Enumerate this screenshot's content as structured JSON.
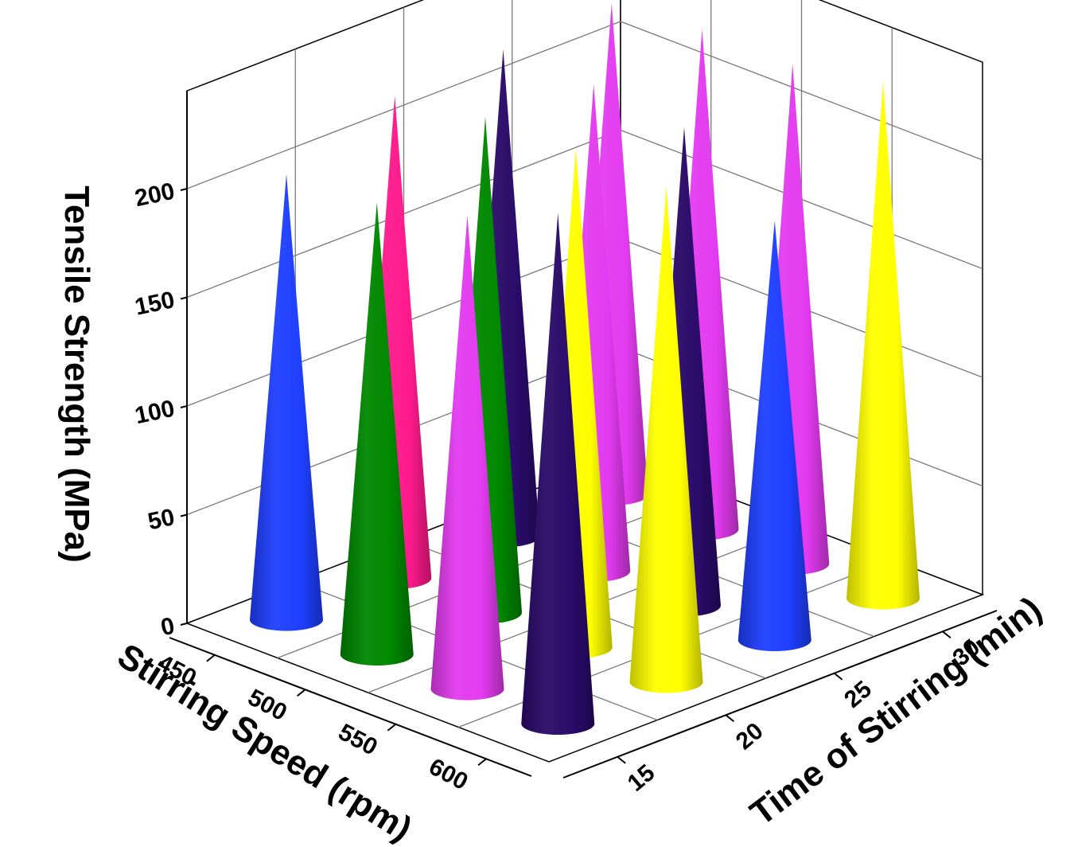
{
  "chart_data": {
    "type": "3d-cone",
    "zlabel": "Tensile Strength (MPa)",
    "xlabel": "Stirring Speed (rpm)",
    "ylabel": "Time of Stirring (min)",
    "z_ticks": [
      "0",
      "50",
      "100",
      "150",
      "200"
    ],
    "x_ticks": [
      "450",
      "500",
      "550",
      "600"
    ],
    "y_ticks": [
      "15",
      "20",
      "25",
      "30"
    ],
    "zlim": [
      0,
      240
    ],
    "grid": true,
    "cones": [
      {
        "speed": 450,
        "time": 15,
        "value": 205,
        "color": "#1f3fff"
      },
      {
        "speed": 500,
        "time": 15,
        "value": 208,
        "color": "#008800"
      },
      {
        "speed": 550,
        "time": 15,
        "value": 218,
        "color": "#e33bf0"
      },
      {
        "speed": 600,
        "time": 15,
        "value": 235,
        "color": "#2a0b6a"
      },
      {
        "speed": 450,
        "time": 20,
        "value": 222,
        "color": "#ff1a8c"
      },
      {
        "speed": 500,
        "time": 20,
        "value": 228,
        "color": "#008800"
      },
      {
        "speed": 550,
        "time": 20,
        "value": 230,
        "color": "#ffff00"
      },
      {
        "speed": 600,
        "time": 20,
        "value": 228,
        "color": "#ffff00"
      },
      {
        "speed": 450,
        "time": 25,
        "value": 224,
        "color": "#2a0b6a"
      },
      {
        "speed": 500,
        "time": 25,
        "value": 224,
        "color": "#e33bf0"
      },
      {
        "speed": 550,
        "time": 25,
        "value": 220,
        "color": "#2a0b6a"
      },
      {
        "speed": 600,
        "time": 25,
        "value": 193,
        "color": "#1f3fff"
      },
      {
        "speed": 450,
        "time": 30,
        "value": 226,
        "color": "#e33bf0"
      },
      {
        "speed": 500,
        "time": 30,
        "value": 230,
        "color": "#e33bf0"
      },
      {
        "speed": 550,
        "time": 30,
        "value": 230,
        "color": "#e33bf0"
      },
      {
        "speed": 600,
        "time": 30,
        "value": 238,
        "color": "#ffff00"
      }
    ]
  }
}
